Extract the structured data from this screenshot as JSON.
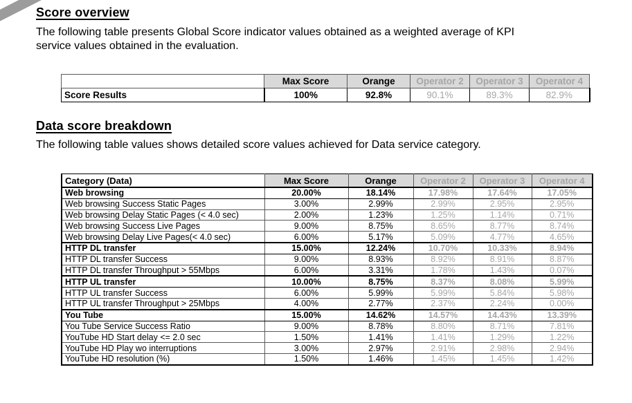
{
  "colors": {
    "header_background": "#d9d9d9",
    "muted_text": "#a6a6a6",
    "ribbon": "#9c9c9c"
  },
  "score_overview": {
    "heading": "Score overview",
    "description": "The following table presents Global Score indicator values obtained as a weighted average of KPI\nservice values obtained in the evaluation.",
    "table": {
      "columns": [
        "",
        "Max Score",
        "Orange",
        "Operator 2",
        "Operator 3",
        "Operator 4"
      ],
      "rows": [
        {
          "label": "Score Results",
          "bold": true,
          "values": [
            "100%",
            "92.8%",
            "90.1%",
            "89.3%",
            "82.9%"
          ]
        }
      ]
    }
  },
  "data_breakdown": {
    "heading": "Data score breakdown",
    "description": "The following table values shows detailed score values achieved for Data service category.",
    "table": {
      "columns": [
        "Category (Data)",
        "Max Score",
        "Orange",
        "Operator 2",
        "Operator 3",
        "Operator 4"
      ],
      "rows": [
        {
          "label": "Web browsing",
          "bold": true,
          "values": [
            "20.00%",
            "18.14%",
            "17.98%",
            "17.64%",
            "17.05%"
          ]
        },
        {
          "label": "Web browsing Success Static Pages",
          "bold": false,
          "values": [
            "3.00%",
            "2.99%",
            "2.99%",
            "2.95%",
            "2.95%"
          ]
        },
        {
          "label": "Web browsing Delay Static Pages (< 4.0 sec)",
          "bold": false,
          "values": [
            "2.00%",
            "1.23%",
            "1.25%",
            "1.14%",
            "0.71%"
          ]
        },
        {
          "label": "Web browsing Success Live Pages",
          "bold": false,
          "values": [
            "9.00%",
            "8.75%",
            "8.65%",
            "8.77%",
            "8.74%"
          ]
        },
        {
          "label": "Web browsing Delay Live Pages(< 4.0 sec)",
          "bold": false,
          "values": [
            "6.00%",
            "5.17%",
            "5.09%",
            "4.77%",
            "4.65%"
          ]
        },
        {
          "label": "HTTP DL transfer",
          "bold": true,
          "values": [
            "15.00%",
            "12.24%",
            "10.70%",
            "10.33%",
            "8.94%"
          ]
        },
        {
          "label": "HTTP DL transfer Success",
          "bold": false,
          "values": [
            "9.00%",
            "8.93%",
            "8.92%",
            "8.91%",
            "8.87%"
          ]
        },
        {
          "label": "HTTP DL transfer Throughput > 55Mbps",
          "bold": false,
          "values": [
            "6.00%",
            "3.31%",
            "1.78%",
            "1.43%",
            "0.07%"
          ]
        },
        {
          "label": "HTTP UL transfer",
          "bold": true,
          "values": [
            "10.00%",
            "8.75%",
            "8.37%",
            "8.08%",
            "5.99%"
          ]
        },
        {
          "label": "HTTP UL transfer Success",
          "bold": false,
          "values": [
            "6.00%",
            "5.99%",
            "5.99%",
            "5.84%",
            "5.98%"
          ]
        },
        {
          "label": "HTTP UL transfer Throughput > 25Mbps",
          "bold": false,
          "values": [
            "4.00%",
            "2.77%",
            "2.37%",
            "2.24%",
            "0.00%"
          ]
        },
        {
          "label": "You Tube",
          "bold": true,
          "values": [
            "15.00%",
            "14.62%",
            "14.57%",
            "14.43%",
            "13.39%"
          ]
        },
        {
          "label": "You Tube Service Success Ratio",
          "bold": false,
          "values": [
            "9.00%",
            "8.78%",
            "8.80%",
            "8.71%",
            "7.81%"
          ]
        },
        {
          "label": "YouTube HD Start delay <= 2.0 sec",
          "bold": false,
          "values": [
            "1.50%",
            "1.41%",
            "1.41%",
            "1.29%",
            "1.22%"
          ]
        },
        {
          "label": "YouTube HD Play wo interruptions",
          "bold": false,
          "values": [
            "3.00%",
            "2.97%",
            "2.91%",
            "2.98%",
            "2.94%"
          ]
        },
        {
          "label": "YouTube HD resolution (%)",
          "bold": false,
          "values": [
            "1.50%",
            "1.46%",
            "1.45%",
            "1.45%",
            "1.42%"
          ]
        }
      ]
    }
  }
}
